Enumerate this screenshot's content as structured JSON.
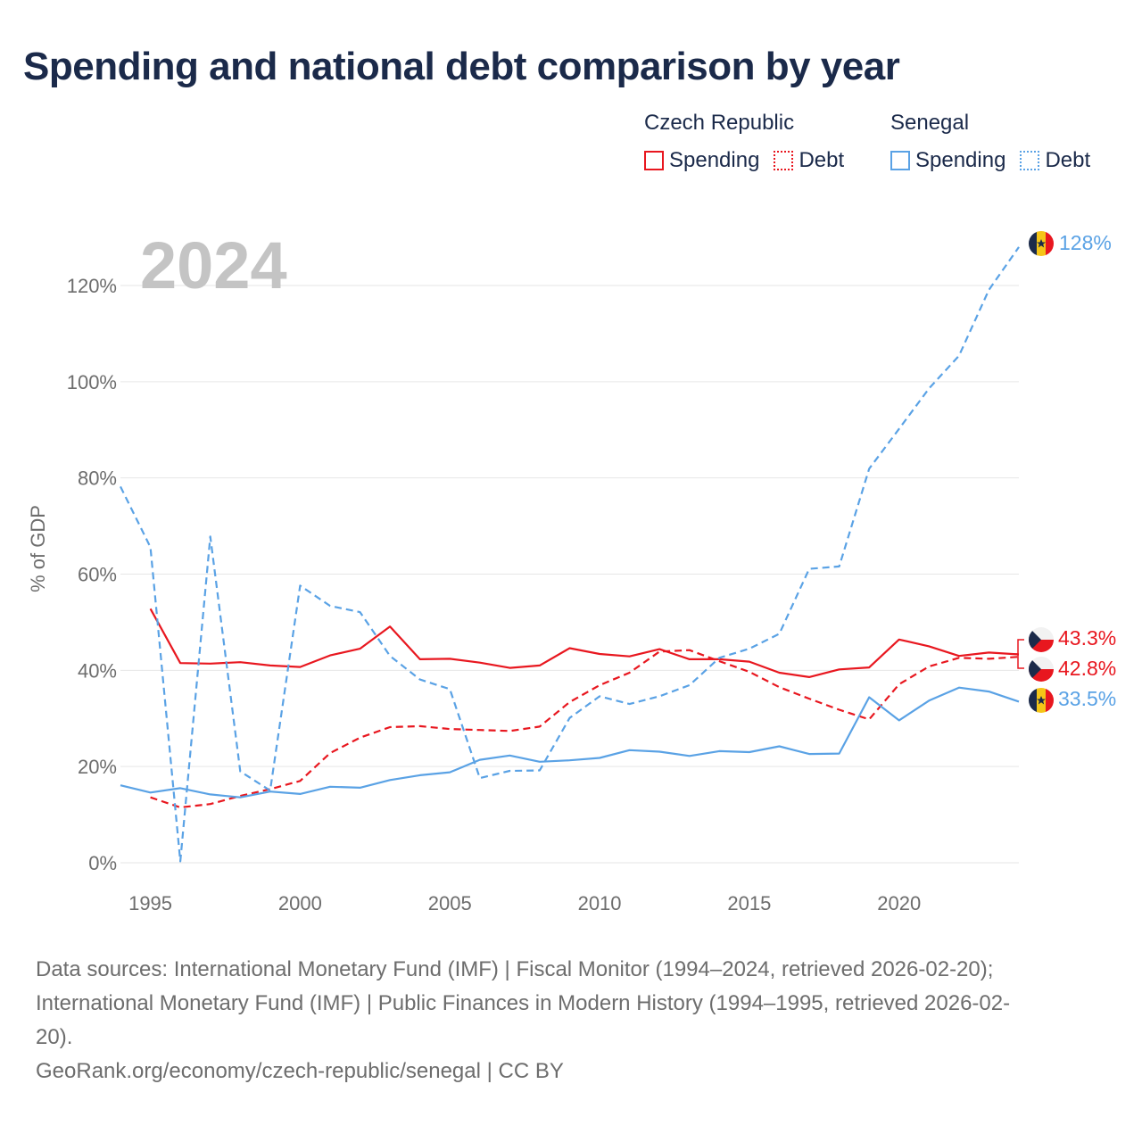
{
  "title": "Spending and national debt comparison by year",
  "legend": {
    "czech_label": "Czech Republic",
    "senegal_label": "Senegal",
    "spending_label": "Spending",
    "debt_label": "Debt"
  },
  "colors": {
    "czech": "#e8171f",
    "senegal": "#5aa2e5"
  },
  "chart_data": {
    "type": "line",
    "year_watermark": "2024",
    "ylabel": "% of GDP",
    "xlabel": "",
    "xlim": [
      1994,
      2024
    ],
    "ylim": [
      0,
      130
    ],
    "x_ticks": [
      "1995",
      "2000",
      "2005",
      "2010",
      "2015",
      "2020"
    ],
    "y_ticks": [
      "0%",
      "20%",
      "40%",
      "60%",
      "80%",
      "100%",
      "120%"
    ],
    "series": [
      {
        "name": "Czech Republic Spending",
        "country": "czech",
        "kind": "spending",
        "start_year": 1995,
        "values": [
          52.8,
          41.5,
          41.4,
          41.7,
          41.0,
          40.7,
          43.1,
          44.5,
          49.1,
          42.3,
          42.4,
          41.6,
          40.5,
          41.0,
          44.6,
          43.4,
          42.9,
          44.4,
          42.3,
          42.3,
          41.8,
          39.5,
          38.6,
          40.2,
          40.6,
          46.4,
          45.0,
          43.0,
          43.7,
          43.3
        ],
        "end_label": "43.3%"
      },
      {
        "name": "Czech Republic Debt",
        "country": "czech",
        "kind": "debt",
        "start_year": 1995,
        "values": [
          13.6,
          11.5,
          12.2,
          13.9,
          15.3,
          17.0,
          22.8,
          26.0,
          28.2,
          28.4,
          27.8,
          27.6,
          27.4,
          28.3,
          33.4,
          36.9,
          39.5,
          43.9,
          44.2,
          41.9,
          39.7,
          36.5,
          34.1,
          31.8,
          29.8,
          37.1,
          40.8,
          42.6,
          42.4,
          42.8
        ],
        "end_label": "42.8%"
      },
      {
        "name": "Senegal Spending",
        "country": "senegal",
        "kind": "spending",
        "start_year": 1994,
        "values": [
          16.1,
          14.6,
          15.5,
          14.2,
          13.6,
          14.8,
          14.3,
          15.8,
          15.6,
          17.2,
          18.2,
          18.8,
          21.4,
          22.3,
          21.0,
          21.3,
          21.8,
          23.4,
          23.1,
          22.2,
          23.2,
          23.0,
          24.2,
          22.6,
          22.7,
          34.4,
          29.6,
          33.7,
          36.4,
          35.6,
          33.5
        ],
        "end_label": "33.5%"
      },
      {
        "name": "Senegal Debt",
        "country": "senegal",
        "kind": "debt",
        "start_year": 1994,
        "values": [
          78.2,
          65.6,
          0.3,
          67.8,
          19.0,
          15.0,
          57.6,
          53.4,
          52.1,
          43.0,
          38.1,
          36.1,
          17.6,
          19.1,
          19.2,
          30.1,
          34.6,
          33.0,
          34.6,
          36.9,
          42.6,
          44.5,
          47.6,
          61.1,
          61.6,
          81.9,
          90.2,
          98.6,
          105.4,
          119.1,
          128.0
        ],
        "end_label": "128%"
      }
    ]
  },
  "footer": {
    "sources_line1": "Data sources: International Monetary Fund (IMF) | Fiscal Monitor (1994–2024, retrieved 2026-02-20);",
    "sources_line2": "International Monetary Fund (IMF) | Public Finances in Modern History (1994–1995, retrieved 2026-02-",
    "sources_line3": "20).",
    "site": "GeoRank.org/economy/czech-republic/senegal | CC BY"
  }
}
